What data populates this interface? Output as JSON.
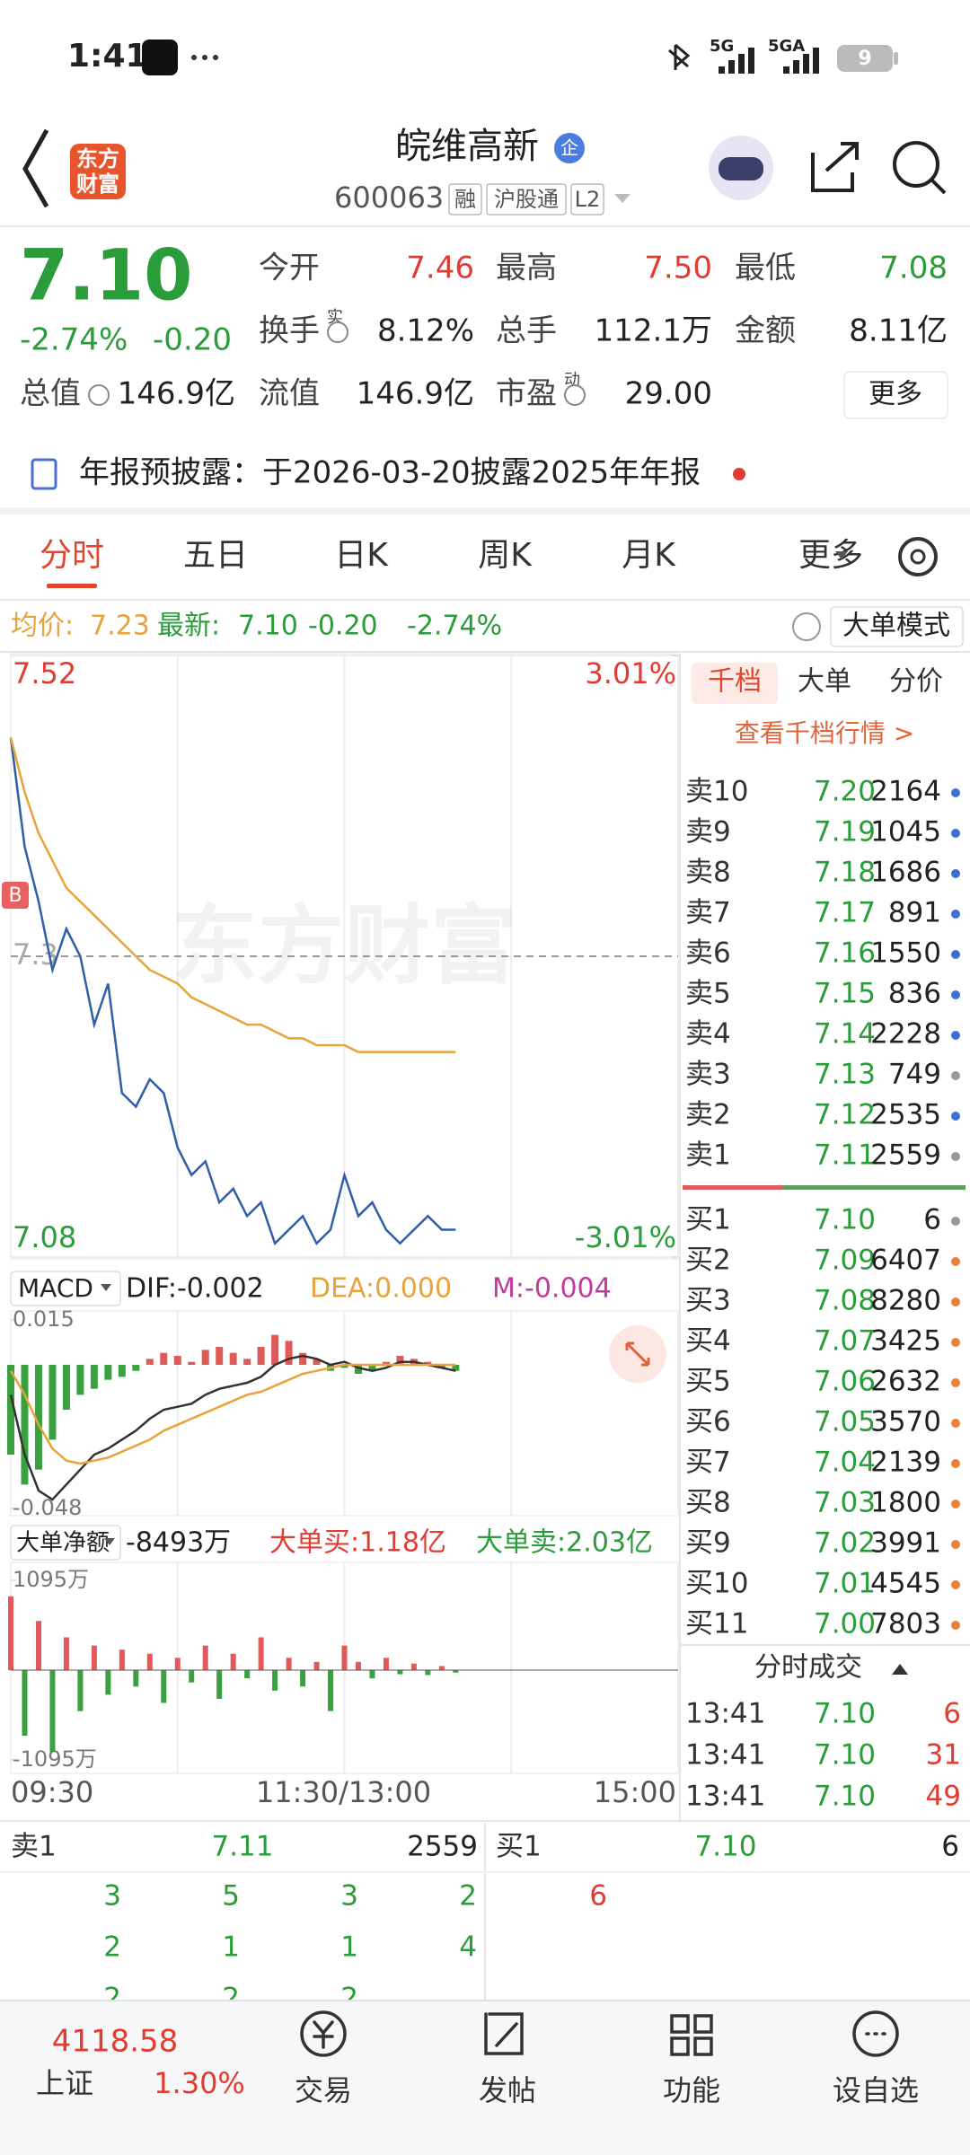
{
  "status_bar": {
    "time": "1:41",
    "network": "5G",
    "network2": "5GA",
    "battery": "9"
  },
  "header": {
    "logo": "东方财富",
    "title": "皖维高新",
    "badge": "企",
    "code": "600063",
    "tags": [
      "融",
      "沪股通",
      "L2"
    ]
  },
  "quote": {
    "price": "7.10",
    "change_pct": "-2.74%",
    "change": "-0.20",
    "more": "更多",
    "fields": [
      {
        "label": "今开",
        "value": "7.46",
        "color": "#e03c31"
      },
      {
        "label": "最高",
        "value": "7.50",
        "color": "#e03c31"
      },
      {
        "label": "最低",
        "value": "7.08",
        "color": "#2a9d3a"
      },
      {
        "label": "换手",
        "sup": "实",
        "value": "8.12%"
      },
      {
        "label": "总手",
        "value": "112.1万"
      },
      {
        "label": "金额",
        "value": "8.11亿"
      },
      {
        "label": "总值",
        "value": "146.9亿"
      },
      {
        "label": "流值",
        "value": "146.9亿"
      },
      {
        "label": "市盈",
        "sup": "动",
        "value": "29.00"
      }
    ]
  },
  "announcement": "年报预披露：于2026-03-20披露2025年年报",
  "tabs": [
    "分时",
    "五日",
    "日K",
    "周K",
    "月K",
    "更多"
  ],
  "info_bar": {
    "avg_label": "均价:",
    "avg": "7.23",
    "latest_label": "最新:",
    "latest": "7.10",
    "change": "-0.20",
    "change_pct": "-2.74%",
    "mode": "大单模式"
  },
  "chart_data": [
    {
      "type": "line",
      "annotation": "B",
      "x": [
        "09:30",
        "09:35",
        "09:40",
        "09:45",
        "09:50",
        "09:55",
        "10:00",
        "10:05",
        "10:10",
        "10:15",
        "10:20",
        "10:25",
        "10:30",
        "10:35",
        "10:40",
        "10:45",
        "10:50",
        "10:55",
        "11:00",
        "11:05",
        "11:10",
        "11:15",
        "11:20",
        "11:25",
        "11:30",
        "13:05",
        "13:10",
        "13:15",
        "13:20",
        "13:25",
        "13:30",
        "13:35",
        "13:40"
      ],
      "series": [
        {
          "color": "#2f5fa8",
          "values": [
            7.46,
            7.38,
            7.34,
            7.29,
            7.32,
            7.3,
            7.25,
            7.28,
            7.2,
            7.19,
            7.21,
            7.2,
            7.16,
            7.14,
            7.15,
            7.12,
            7.13,
            7.11,
            7.12,
            7.09,
            7.1,
            7.11,
            7.09,
            7.1,
            7.14,
            7.11,
            7.12,
            7.1,
            7.09,
            7.1,
            7.11,
            7.1,
            7.1
          ]
        },
        {
          "color": "#e8a33a",
          "values": [
            7.46,
            7.42,
            7.39,
            7.37,
            7.35,
            7.34,
            7.33,
            7.32,
            7.31,
            7.3,
            7.29,
            7.285,
            7.28,
            7.27,
            7.265,
            7.26,
            7.255,
            7.25,
            7.25,
            7.245,
            7.24,
            7.24,
            7.235,
            7.235,
            7.235,
            7.23,
            7.23,
            7.23,
            7.23,
            7.23,
            7.23,
            7.23,
            7.23
          ]
        }
      ],
      "ylim": [
        7.08,
        7.52
      ],
      "yticks": [
        7.08,
        7.3,
        7.52
      ],
      "y2lim": [
        -3.01,
        3.01
      ],
      "y2ticks": [
        {
          "value": -3.01,
          "label": "-3.01%"
        },
        {
          "value": 3.01,
          "label": "3.01%"
        }
      ],
      "xticks": [
        "09:30",
        "11:30/13:00",
        "15:00"
      ],
      "grid": true
    },
    {
      "type": "macd",
      "title": "MACD",
      "dif_label": "DIF:-0.002",
      "dea_label": "DEA:0.000",
      "m_label": "M:-0.004",
      "series": [
        {
          "color": "#e05a5a",
          "down_color": "#3aa040",
          "values": [
            -0.03,
            -0.04,
            -0.035,
            -0.025,
            -0.015,
            -0.01,
            -0.008,
            -0.005,
            -0.004,
            -0.002,
            0.002,
            0.004,
            0.003,
            0.001,
            0.005,
            0.006,
            0.004,
            0.002,
            0.006,
            0.01,
            0.008,
            0.004,
            0.002,
            -0.002,
            -0.001,
            -0.003,
            -0.002,
            0.001,
            0.003,
            0.002,
            0.001,
            -0.001,
            -0.002
          ]
        },
        {
          "color": "#333333",
          "values": [
            -0.01,
            -0.03,
            -0.042,
            -0.045,
            -0.04,
            -0.035,
            -0.03,
            -0.028,
            -0.025,
            -0.022,
            -0.018,
            -0.015,
            -0.014,
            -0.013,
            -0.01,
            -0.008,
            -0.007,
            -0.006,
            -0.004,
            0.0,
            0.002,
            0.003,
            0.002,
            0.0,
            0.001,
            -0.001,
            -0.002,
            -0.001,
            0.001,
            0.001,
            0.0,
            -0.001,
            -0.002
          ]
        },
        {
          "color": "#e8a33a",
          "values": [
            -0.002,
            -0.01,
            -0.02,
            -0.028,
            -0.032,
            -0.033,
            -0.032,
            -0.031,
            -0.029,
            -0.027,
            -0.025,
            -0.022,
            -0.02,
            -0.018,
            -0.016,
            -0.014,
            -0.012,
            -0.01,
            -0.009,
            -0.007,
            -0.005,
            -0.003,
            -0.002,
            -0.001,
            0.0,
            0.0,
            0.0,
            0.0,
            0.0,
            0.0,
            0.0,
            0.0,
            0.0
          ]
        }
      ],
      "ylim": [
        -0.048,
        0.015
      ],
      "yticks": [
        -0.048,
        0.015
      ]
    },
    {
      "type": "bar",
      "title": "大单净额",
      "total": "-8493万",
      "buy": "大单买:1.18亿",
      "sell": "大单卖:2.03亿",
      "color": "#e05a5a",
      "down_color": "#3aa040",
      "values": [
        900,
        -800,
        600,
        -1000,
        400,
        -500,
        300,
        -300,
        250,
        -200,
        200,
        -400,
        150,
        -150,
        300,
        -350,
        200,
        -100,
        400,
        -250,
        150,
        -200,
        100,
        -500,
        300,
        100,
        -100,
        150,
        -50,
        80,
        -60,
        50,
        -30
      ],
      "ylim": [
        -1095,
        1095
      ],
      "yticks": [
        {
          "value": -1095,
          "label": "-1095万"
        },
        {
          "value": 1095,
          "label": "1095万"
        }
      ]
    }
  ],
  "order_book": {
    "tabs": [
      "千档",
      "大单",
      "分价"
    ],
    "link": "查看千档行情 >",
    "asks": [
      {
        "label": "卖10",
        "price": "7.20",
        "volume": 2164,
        "dot": "#3d6fd1"
      },
      {
        "label": "卖9",
        "price": "7.19",
        "volume": 1045,
        "dot": "#3d6fd1"
      },
      {
        "label": "卖8",
        "price": "7.18",
        "volume": 1686,
        "dot": "#3d6fd1"
      },
      {
        "label": "卖7",
        "price": "7.17",
        "volume": 891,
        "dot": "#3d6fd1"
      },
      {
        "label": "卖6",
        "price": "7.16",
        "volume": 1550,
        "dot": "#3d6fd1"
      },
      {
        "label": "卖5",
        "price": "7.15",
        "volume": 836,
        "dot": "#3d6fd1"
      },
      {
        "label": "卖4",
        "price": "7.14",
        "volume": 2228,
        "dot": "#3d6fd1"
      },
      {
        "label": "卖3",
        "price": "7.13",
        "volume": 749,
        "dot": "#999999"
      },
      {
        "label": "卖2",
        "price": "7.12",
        "volume": 2535,
        "dot": "#3d6fd1"
      },
      {
        "label": "卖1",
        "price": "7.11",
        "volume": 2559,
        "dot": "#999999"
      }
    ],
    "bids": [
      {
        "label": "买1",
        "price": "7.10",
        "volume": 6,
        "dot": "#999999"
      },
      {
        "label": "买2",
        "price": "7.09",
        "volume": 6407,
        "dot": "#e8823a"
      },
      {
        "label": "买3",
        "price": "7.08",
        "volume": 8280,
        "dot": "#e8823a"
      },
      {
        "label": "买4",
        "price": "7.07",
        "volume": 3425,
        "dot": "#e8823a"
      },
      {
        "label": "买5",
        "price": "7.06",
        "volume": 2632,
        "dot": "#e8823a"
      },
      {
        "label": "买6",
        "price": "7.05",
        "volume": 3570,
        "dot": "#e8823a"
      },
      {
        "label": "买7",
        "price": "7.04",
        "volume": 2139,
        "dot": "#e8823a"
      },
      {
        "label": "买8",
        "price": "7.03",
        "volume": 1800,
        "dot": "#e8823a"
      },
      {
        "label": "买9",
        "price": "7.02",
        "volume": 3991,
        "dot": "#e8823a"
      },
      {
        "label": "买10",
        "price": "7.01",
        "volume": 4545,
        "dot": "#e8823a"
      },
      {
        "label": "买11",
        "price": "7.00",
        "volume": 7803,
        "dot": "#e8823a"
      }
    ],
    "trades_title": "分时成交",
    "trades": [
      {
        "time": "13:41",
        "price": "7.10",
        "volume": 6
      },
      {
        "time": "13:41",
        "price": "7.10",
        "volume": 31
      },
      {
        "time": "13:41",
        "price": "7.10",
        "volume": 49
      }
    ]
  },
  "bottom_quote": {
    "ask_label": "卖1",
    "ask_price": "7.11",
    "ask_volume": 2559,
    "bid_label": "买1",
    "bid_price": "7.10",
    "bid_volume": 6,
    "ask_rows": [
      [
        3,
        5,
        3,
        2
      ],
      [
        2,
        1,
        1,
        4
      ],
      [
        2,
        2,
        2
      ]
    ],
    "bid_rows": [
      [
        6
      ]
    ]
  },
  "nav": {
    "index_value": "4118.58",
    "index_name": "上证",
    "index_change": "1.30%",
    "items": [
      "交易",
      "发帖",
      "功能",
      "设自选"
    ]
  }
}
